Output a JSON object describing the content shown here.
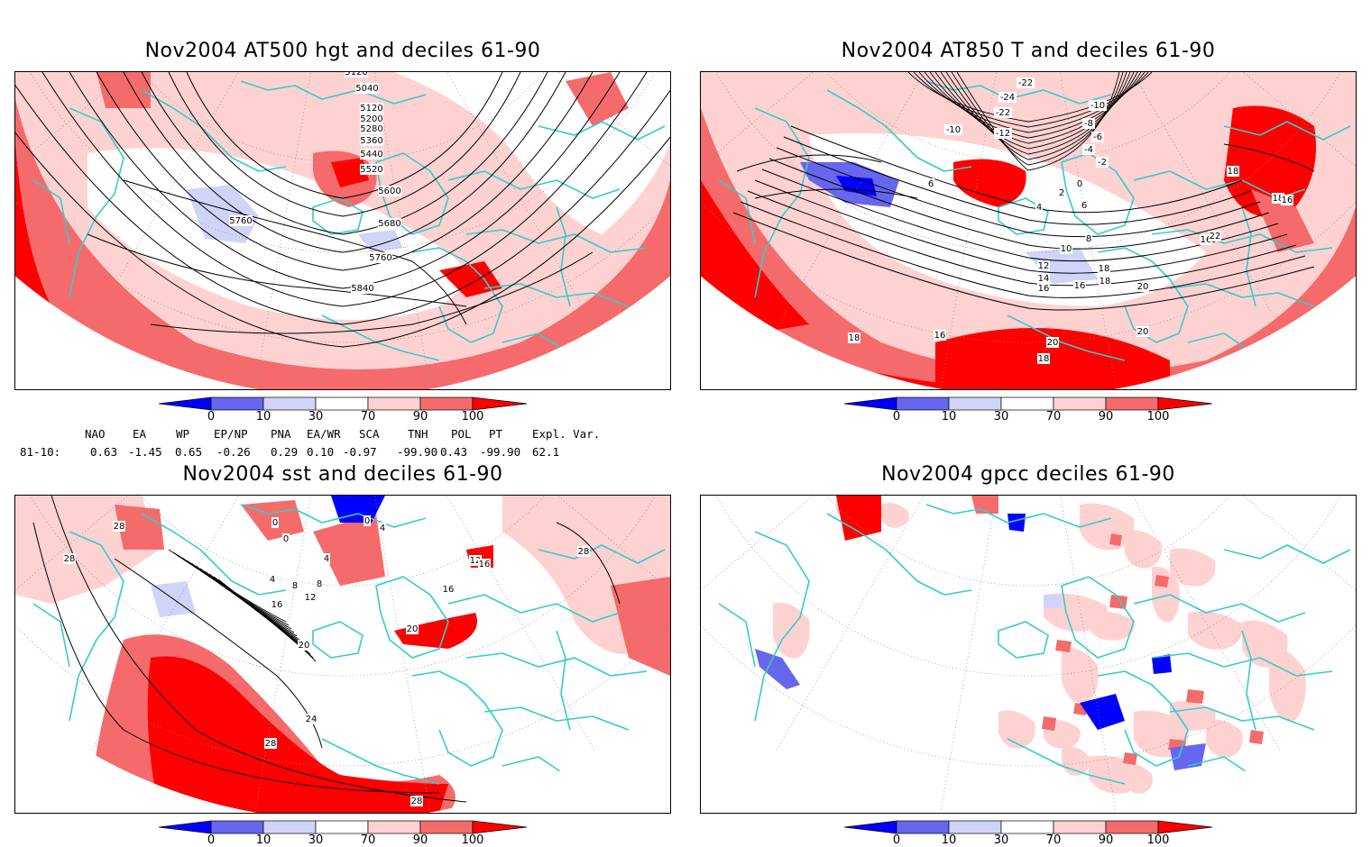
{
  "colors": {
    "blue_strong": "#0000ff",
    "blue_mid": "#6666ee",
    "blue_light": "#d0d4f8",
    "white": "#ffffff",
    "red_light": "#ffd2d2",
    "red_mid": "#f56b6b",
    "red_strong": "#ff0000",
    "coast": "#33cccc",
    "contour": "#000000"
  },
  "panels": [
    {
      "id": "tl",
      "title": "Nov2004 AT500 hgt and deciles 61-90",
      "contour_labels": [
        "5120",
        "5040",
        "5120",
        "5200",
        "5280",
        "5360",
        "5440",
        "5520",
        "5600",
        "5680",
        "5760",
        "5760",
        "5840"
      ]
    },
    {
      "id": "tr",
      "title": "Nov2004 AT850 T and deciles 61-90",
      "contour_labels": [
        "-22",
        "-24",
        "-22",
        "-10",
        "-12",
        "-10",
        "-8",
        "-6",
        "-4",
        "-2",
        "0",
        "2",
        "4",
        "6",
        "6",
        "8",
        "10",
        "12",
        "14",
        "16",
        "18",
        "18",
        "16",
        "16",
        "18",
        "18",
        "20",
        "20",
        "22",
        "20",
        "16",
        "18",
        "16",
        "18"
      ]
    },
    {
      "id": "bl",
      "title": "Nov2004 sst and deciles 61-90",
      "contour_labels": [
        "28",
        "28",
        "0",
        "0",
        "0",
        "4",
        "4",
        "8",
        "8",
        "4",
        "12",
        "16",
        "20",
        "24",
        "28",
        "28",
        "12",
        "16",
        "16",
        "20",
        "28"
      ]
    },
    {
      "id": "br",
      "title": "Nov2004 gpcc deciles 61-90",
      "contour_labels": []
    }
  ],
  "colorbar_ticks": [
    "0",
    "10",
    "30",
    "70",
    "90",
    "100"
  ],
  "indices": {
    "headers": [
      "NAO",
      "EA",
      "WP",
      "EP/NP",
      "PNA",
      "EA/WR",
      "SCA",
      "TNH",
      "POL",
      "PT",
      "Expl. Var."
    ],
    "row_label": "81-10:",
    "values": [
      "0.63",
      "-1.45",
      "0.65",
      "-0.26",
      "0.29",
      "0.10",
      "-0.97",
      "-99.90",
      "0.43",
      "-99.90",
      "62.1"
    ]
  }
}
